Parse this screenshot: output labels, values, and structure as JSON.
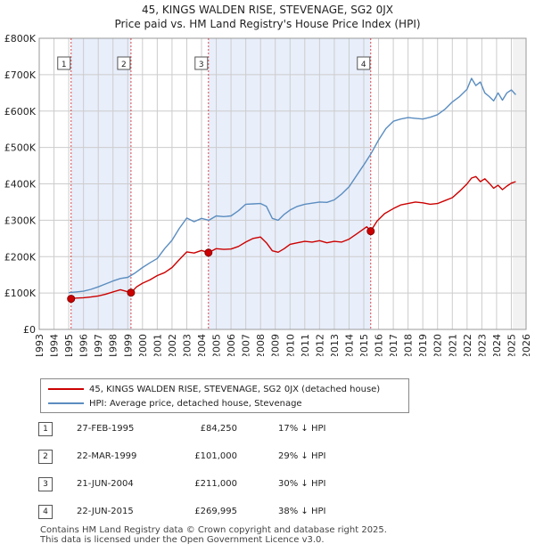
{
  "chart_data": {
    "type": "line",
    "title": "45, KINGS WALDEN RISE, STEVENAGE, SG2 0JX",
    "subtitle": "Price paid vs. HM Land Registry's House Price Index (HPI)",
    "xlim": [
      1993,
      2026
    ],
    "ylim": [
      0,
      800000
    ],
    "x_ticks": [
      "1993",
      "1994",
      "1995",
      "1996",
      "1997",
      "1998",
      "1999",
      "2000",
      "2001",
      "2002",
      "2003",
      "2004",
      "2005",
      "2006",
      "2007",
      "2008",
      "2009",
      "2010",
      "2011",
      "2012",
      "2013",
      "2014",
      "2015",
      "2016",
      "2017",
      "2018",
      "2019",
      "2020",
      "2021",
      "2022",
      "2023",
      "2024",
      "2025",
      "2026"
    ],
    "y_ticks": [
      {
        "value": 0,
        "label": "£0"
      },
      {
        "value": 100000,
        "label": "£100K"
      },
      {
        "value": 200000,
        "label": "£200K"
      },
      {
        "value": 300000,
        "label": "£300K"
      },
      {
        "value": 400000,
        "label": "£400K"
      },
      {
        "value": 500000,
        "label": "£500K"
      },
      {
        "value": 600000,
        "label": "£600K"
      },
      {
        "value": 700000,
        "label": "£700K"
      },
      {
        "value": 800000,
        "label": "£800K"
      }
    ],
    "shaded_ranges": [
      [
        1995.16,
        1999.22
      ],
      [
        2004.47,
        2015.47
      ]
    ],
    "series": [
      {
        "name": "45, KINGS WALDEN RISE, STEVENAGE, SG2 0JX (detached house)",
        "color": "#cc0000",
        "x": [
          1995.16,
          1995.5,
          1996,
          1996.5,
          1997,
          1997.5,
          1998,
          1998.5,
          1999.22,
          1999.6,
          2000,
          2000.5,
          2001,
          2001.5,
          2002,
          2002.5,
          2003,
          2003.5,
          2004,
          2004.47,
          2005,
          2005.5,
          2006,
          2006.5,
          2007,
          2007.5,
          2008,
          2008.4,
          2008.8,
          2009.2,
          2009.6,
          2010,
          2010.5,
          2011,
          2011.5,
          2012,
          2012.5,
          2013,
          2013.5,
          2014,
          2014.5,
          2015.2,
          2015.47,
          2015.9,
          2016.4,
          2017,
          2017.5,
          2018,
          2018.5,
          2019,
          2019.5,
          2020,
          2020.5,
          2021,
          2021.5,
          2022,
          2022.3,
          2022.6,
          2022.9,
          2023.2,
          2023.5,
          2023.8,
          2024.1,
          2024.4,
          2024.7,
          2025,
          2025.3
        ],
        "values": [
          84250,
          86000,
          87000,
          89000,
          92000,
          97000,
          103000,
          109000,
          101000,
          117000,
          127000,
          136000,
          148000,
          156000,
          170000,
          192000,
          213000,
          210000,
          217000,
          211000,
          222000,
          220000,
          221000,
          228000,
          240000,
          250000,
          254000,
          238000,
          216000,
          212000,
          222000,
          234000,
          238000,
          242000,
          240000,
          244000,
          238000,
          242000,
          240000,
          248000,
          262000,
          282000,
          269995,
          298000,
          318000,
          332000,
          342000,
          346000,
          350000,
          348000,
          344000,
          346000,
          354000,
          362000,
          380000,
          400000,
          416000,
          420000,
          406000,
          414000,
          402000,
          388000,
          396000,
          384000,
          394000,
          402000,
          406000
        ]
      },
      {
        "name": "HPI: Average price, detached house, Stevenage",
        "color": "#5b8dc0",
        "x": [
          1995,
          1995.5,
          1996,
          1996.5,
          1997,
          1997.5,
          1998,
          1998.5,
          1999,
          1999.5,
          2000,
          2000.5,
          2001,
          2001.5,
          2002,
          2002.5,
          2003,
          2003.5,
          2004,
          2004.5,
          2005,
          2005.5,
          2006,
          2006.5,
          2007,
          2007.5,
          2008,
          2008.4,
          2008.8,
          2009.2,
          2009.6,
          2010,
          2010.5,
          2011,
          2011.5,
          2012,
          2012.5,
          2013,
          2013.5,
          2014,
          2014.5,
          2015,
          2015.5,
          2016,
          2016.5,
          2017,
          2017.5,
          2018,
          2018.5,
          2019,
          2019.5,
          2020,
          2020.5,
          2021,
          2021.5,
          2022,
          2022.3,
          2022.6,
          2022.9,
          2023.2,
          2023.5,
          2023.8,
          2024.1,
          2024.4,
          2024.7,
          2025,
          2025.3
        ],
        "values": [
          101000,
          103000,
          105000,
          110000,
          117000,
          125000,
          133000,
          140000,
          143000,
          155000,
          170000,
          183000,
          195000,
          222000,
          245000,
          278000,
          306000,
          296000,
          305000,
          300000,
          312000,
          310000,
          312000,
          326000,
          344000,
          345000,
          346000,
          338000,
          305000,
          300000,
          316000,
          328000,
          338000,
          344000,
          347000,
          350000,
          349000,
          356000,
          372000,
          392000,
          422000,
          452000,
          484000,
          520000,
          552000,
          572000,
          578000,
          582000,
          580000,
          578000,
          583000,
          590000,
          605000,
          625000,
          640000,
          660000,
          690000,
          670000,
          680000,
          650000,
          640000,
          628000,
          650000,
          630000,
          650000,
          658000,
          645000
        ]
      }
    ],
    "sale_markers": [
      {
        "num": "1",
        "x": 1995.16,
        "value": 84250
      },
      {
        "num": "2",
        "x": 1999.22,
        "value": 101000
      },
      {
        "num": "3",
        "x": 2004.47,
        "value": 211000
      },
      {
        "num": "4",
        "x": 2015.47,
        "value": 269995
      }
    ]
  },
  "legend": {
    "property_label": "45, KINGS WALDEN RISE, STEVENAGE, SG2 0JX (detached house)",
    "hpi_label": "HPI: Average price, detached house, Stevenage"
  },
  "sales": [
    {
      "num": "1",
      "date": "27-FEB-1995",
      "price": "£84,250",
      "hpi": "17% ↓ HPI"
    },
    {
      "num": "2",
      "date": "22-MAR-1999",
      "price": "£101,000",
      "hpi": "29% ↓ HPI"
    },
    {
      "num": "3",
      "date": "21-JUN-2004",
      "price": "£211,000",
      "hpi": "30% ↓ HPI"
    },
    {
      "num": "4",
      "date": "22-JUN-2015",
      "price": "£269,995",
      "hpi": "38% ↓ HPI"
    }
  ],
  "footer": {
    "line1": "Contains HM Land Registry data © Crown copyright and database right 2025.",
    "line2": "This data is licensed under the Open Government Licence v3.0."
  },
  "colors": {
    "property_line": "#cc0000",
    "hpi_line": "#5b8dc0",
    "shade": "#e8eefa",
    "grid": "#cccccc"
  }
}
